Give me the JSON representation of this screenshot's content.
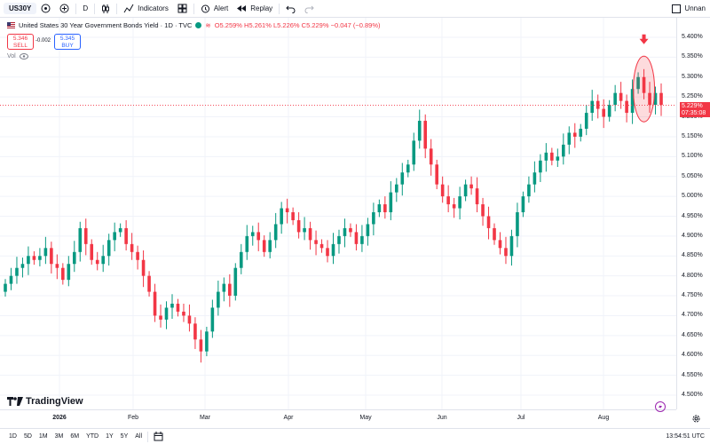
{
  "toolbar": {
    "symbol": "US30Y",
    "interval": "D",
    "indicators_label": "Indicators",
    "alert_label": "Alert",
    "replay_label": "Replay",
    "layout_name": "Unnan"
  },
  "legend": {
    "title": "United States 30 Year Government Bonds Yield · 1D · TVC",
    "ohlc": "O5.259% H5.261% L5.226% C5.229% −0.047 (−0.89%)"
  },
  "trade": {
    "sell_price": "5.346",
    "sell_label": "SELL",
    "spread": "-0.002",
    "buy_price": "5.345",
    "buy_label": "BUY"
  },
  "vol_label": "Vol",
  "price_axis": {
    "ticks": [
      "5.400%",
      "5.350%",
      "5.300%",
      "5.250%",
      "5.200%",
      "5.150%",
      "5.100%",
      "5.050%",
      "5.000%",
      "4.950%",
      "4.900%",
      "4.850%",
      "4.800%",
      "4.750%",
      "4.700%",
      "4.650%",
      "4.600%",
      "4.550%",
      "4.500%"
    ],
    "current_price": "5.229%",
    "countdown": "07:35:08"
  },
  "time_axis": {
    "ticks": [
      "2026",
      "Feb",
      "Mar",
      "Apr",
      "May",
      "Jun",
      "Jul",
      "Aug"
    ]
  },
  "bottom": {
    "ranges": [
      "1D",
      "5D",
      "1M",
      "3M",
      "6M",
      "YTD",
      "1Y",
      "5Y",
      "All"
    ],
    "clock": "13:54:51 UTC"
  },
  "brand": "TradingView",
  "colors": {
    "up": "#089981",
    "down": "#f23645",
    "accent": "#2962ff"
  },
  "chart_data": {
    "type": "candlestick",
    "title": "United States 30 Year Government Bonds Yield · 1D · TVC",
    "ylim": [
      4.5,
      5.42
    ],
    "y_unit": "%",
    "grid": true,
    "closes": [
      4.78,
      4.8,
      4.82,
      4.83,
      4.85,
      4.84,
      4.85,
      4.87,
      4.83,
      4.82,
      4.79,
      4.83,
      4.86,
      4.92,
      4.88,
      4.84,
      4.83,
      4.85,
      4.89,
      4.91,
      4.92,
      4.88,
      4.86,
      4.84,
      4.8,
      4.76,
      4.7,
      4.69,
      4.72,
      4.73,
      4.71,
      4.7,
      4.68,
      4.64,
      4.61,
      4.66,
      4.72,
      4.76,
      4.78,
      4.75,
      4.82,
      4.86,
      4.9,
      4.91,
      4.89,
      4.86,
      4.89,
      4.93,
      4.97,
      4.96,
      4.94,
      4.91,
      4.92,
      4.89,
      4.88,
      4.87,
      4.85,
      4.88,
      4.9,
      4.92,
      4.91,
      4.88,
      4.9,
      4.93,
      4.96,
      4.98,
      4.96,
      5.01,
      5.03,
      5.06,
      5.08,
      5.14,
      5.19,
      5.12,
      5.08,
      5.03,
      5.0,
      4.98,
      4.97,
      5.0,
      5.03,
      5.02,
      4.98,
      4.95,
      4.92,
      4.89,
      4.87,
      4.85,
      4.9,
      4.96,
      5.0,
      5.03,
      5.06,
      5.09,
      5.11,
      5.09,
      5.1,
      5.13,
      5.16,
      5.15,
      5.17,
      5.21,
      5.24,
      5.22,
      5.2,
      5.23,
      5.26,
      5.24,
      5.21,
      5.27,
      5.3,
      5.26,
      5.23,
      5.26,
      5.23
    ]
  }
}
